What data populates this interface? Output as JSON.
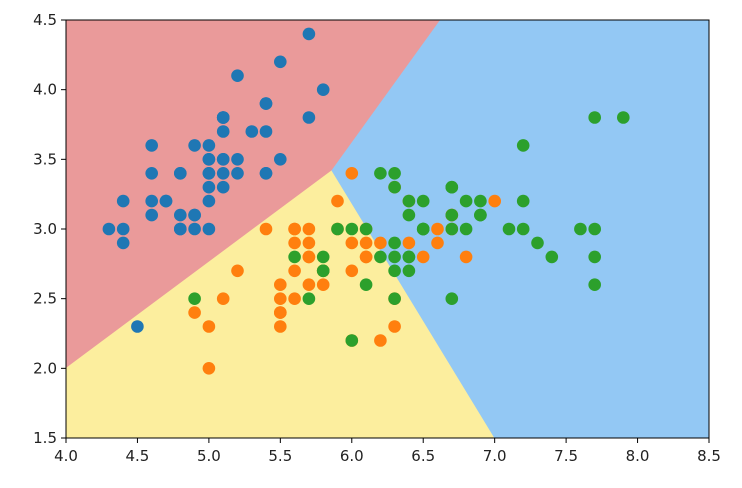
{
  "chart_data": {
    "type": "scatter",
    "title": "",
    "xlabel": "",
    "ylabel": "",
    "xlim": [
      4.0,
      8.5
    ],
    "ylim": [
      1.5,
      4.5
    ],
    "grid": false,
    "legend": "none",
    "x_ticks": [
      "4.0",
      "4.5",
      "5.0",
      "5.5",
      "6.0",
      "6.5",
      "7.0",
      "7.5",
      "8.0",
      "8.5"
    ],
    "y_ticks": [
      "1.5",
      "2.0",
      "2.5",
      "3.0",
      "3.5",
      "4.0",
      "4.5"
    ],
    "decision_regions": [
      {
        "class": 0,
        "color": "#ea9a9a",
        "polygon": [
          [
            4.0,
            4.5
          ],
          [
            6.62,
            4.5
          ],
          [
            5.86,
            3.42
          ],
          [
            4.0,
            2.0
          ]
        ]
      },
      {
        "class": 1,
        "color": "#fcee9e",
        "polygon": [
          [
            4.0,
            1.5
          ],
          [
            7.0,
            1.5
          ],
          [
            5.86,
            3.42
          ],
          [
            4.0,
            2.0
          ]
        ]
      },
      {
        "class": 2,
        "color": "#93c8f4",
        "polygon": [
          [
            6.62,
            4.5
          ],
          [
            8.5,
            4.5
          ],
          [
            8.5,
            1.5
          ],
          [
            7.0,
            1.5
          ],
          [
            5.86,
            3.42
          ]
        ]
      }
    ],
    "series": [
      {
        "color": "#1f77b4",
        "points": [
          [
            5.1,
            3.5
          ],
          [
            4.9,
            3.0
          ],
          [
            4.7,
            3.2
          ],
          [
            4.6,
            3.1
          ],
          [
            5.0,
            3.6
          ],
          [
            5.4,
            3.9
          ],
          [
            4.6,
            3.4
          ],
          [
            5.0,
            3.4
          ],
          [
            4.4,
            2.9
          ],
          [
            4.9,
            3.1
          ],
          [
            5.4,
            3.7
          ],
          [
            4.8,
            3.4
          ],
          [
            4.8,
            3.0
          ],
          [
            4.3,
            3.0
          ],
          [
            5.8,
            4.0
          ],
          [
            5.7,
            4.4
          ],
          [
            5.4,
            3.9
          ],
          [
            5.1,
            3.5
          ],
          [
            5.7,
            3.8
          ],
          [
            5.1,
            3.8
          ],
          [
            5.4,
            3.4
          ],
          [
            5.1,
            3.7
          ],
          [
            4.6,
            3.6
          ],
          [
            5.1,
            3.3
          ],
          [
            4.8,
            3.4
          ],
          [
            5.0,
            3.0
          ],
          [
            5.0,
            3.4
          ],
          [
            5.2,
            3.5
          ],
          [
            5.2,
            3.4
          ],
          [
            4.7,
            3.2
          ],
          [
            4.8,
            3.1
          ],
          [
            5.4,
            3.4
          ],
          [
            5.2,
            4.1
          ],
          [
            5.5,
            4.2
          ],
          [
            4.9,
            3.1
          ],
          [
            5.0,
            3.2
          ],
          [
            5.5,
            3.5
          ],
          [
            4.9,
            3.6
          ],
          [
            4.4,
            3.0
          ],
          [
            5.1,
            3.4
          ],
          [
            5.0,
            3.5
          ],
          [
            4.5,
            2.3
          ],
          [
            4.4,
            3.2
          ],
          [
            5.0,
            3.5
          ],
          [
            5.1,
            3.8
          ],
          [
            4.8,
            3.0
          ],
          [
            5.1,
            3.8
          ],
          [
            4.6,
            3.2
          ],
          [
            5.3,
            3.7
          ],
          [
            5.0,
            3.3
          ]
        ]
      },
      {
        "color": "#ff7f0e",
        "points": [
          [
            7.0,
            3.2
          ],
          [
            6.4,
            3.2
          ],
          [
            5.5,
            2.3
          ],
          [
            6.5,
            2.8
          ],
          [
            5.7,
            2.8
          ],
          [
            6.3,
            3.3
          ],
          [
            4.9,
            2.4
          ],
          [
            6.6,
            2.9
          ],
          [
            5.2,
            2.7
          ],
          [
            5.0,
            2.0
          ],
          [
            5.9,
            3.0
          ],
          [
            6.0,
            2.2
          ],
          [
            6.1,
            2.9
          ],
          [
            5.6,
            2.9
          ],
          [
            6.7,
            3.1
          ],
          [
            5.6,
            3.0
          ],
          [
            5.8,
            2.7
          ],
          [
            6.2,
            2.2
          ],
          [
            5.6,
            2.5
          ],
          [
            5.9,
            3.2
          ],
          [
            6.1,
            2.8
          ],
          [
            6.3,
            2.5
          ],
          [
            6.1,
            2.8
          ],
          [
            6.4,
            2.9
          ],
          [
            6.6,
            3.0
          ],
          [
            6.8,
            2.8
          ],
          [
            6.7,
            3.0
          ],
          [
            6.0,
            2.9
          ],
          [
            5.7,
            2.6
          ],
          [
            5.5,
            2.4
          ],
          [
            5.5,
            2.4
          ],
          [
            5.8,
            2.7
          ],
          [
            6.0,
            2.7
          ],
          [
            5.4,
            3.0
          ],
          [
            6.0,
            3.4
          ],
          [
            6.7,
            3.1
          ],
          [
            6.3,
            2.3
          ],
          [
            5.6,
            3.0
          ],
          [
            5.5,
            2.5
          ],
          [
            5.5,
            2.6
          ],
          [
            6.1,
            3.0
          ],
          [
            5.8,
            2.6
          ],
          [
            5.0,
            2.3
          ],
          [
            5.6,
            2.7
          ],
          [
            5.7,
            3.0
          ],
          [
            5.7,
            2.9
          ],
          [
            6.2,
            2.9
          ],
          [
            5.1,
            2.5
          ],
          [
            5.7,
            2.8
          ]
        ]
      },
      {
        "color": "#2ca02c",
        "points": [
          [
            6.3,
            3.3
          ],
          [
            5.8,
            2.7
          ],
          [
            7.1,
            3.0
          ],
          [
            6.3,
            2.9
          ],
          [
            6.5,
            3.0
          ],
          [
            7.6,
            3.0
          ],
          [
            4.9,
            2.5
          ],
          [
            7.3,
            2.9
          ],
          [
            6.7,
            2.5
          ],
          [
            7.2,
            3.6
          ],
          [
            6.5,
            3.2
          ],
          [
            6.4,
            2.7
          ],
          [
            6.8,
            3.0
          ],
          [
            5.7,
            2.5
          ],
          [
            5.8,
            2.8
          ],
          [
            6.4,
            3.2
          ],
          [
            6.5,
            3.0
          ],
          [
            7.7,
            3.8
          ],
          [
            7.7,
            2.6
          ],
          [
            6.0,
            2.2
          ],
          [
            6.9,
            3.2
          ],
          [
            5.6,
            2.8
          ],
          [
            7.7,
            2.8
          ],
          [
            6.3,
            2.7
          ],
          [
            6.7,
            3.3
          ],
          [
            7.2,
            3.2
          ],
          [
            6.2,
            2.8
          ],
          [
            6.1,
            3.0
          ],
          [
            6.4,
            2.8
          ],
          [
            7.2,
            3.0
          ],
          [
            7.4,
            2.8
          ],
          [
            7.9,
            3.8
          ],
          [
            6.4,
            2.8
          ],
          [
            6.3,
            2.8
          ],
          [
            6.1,
            2.6
          ],
          [
            7.7,
            3.0
          ],
          [
            6.3,
            3.4
          ],
          [
            6.4,
            3.1
          ],
          [
            6.0,
            3.0
          ],
          [
            6.9,
            3.1
          ],
          [
            6.7,
            3.1
          ],
          [
            6.9,
            3.1
          ],
          [
            5.8,
            2.7
          ],
          [
            6.8,
            3.2
          ],
          [
            6.7,
            3.3
          ],
          [
            6.7,
            3.0
          ],
          [
            6.3,
            2.5
          ],
          [
            6.5,
            3.0
          ],
          [
            6.2,
            3.4
          ],
          [
            5.9,
            3.0
          ]
        ]
      }
    ]
  }
}
